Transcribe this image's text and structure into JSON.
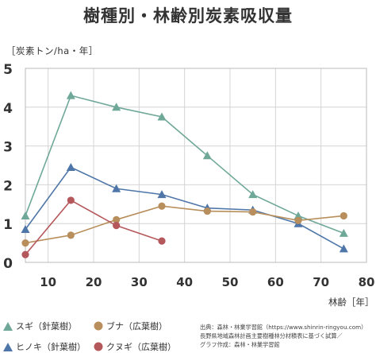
{
  "title": "樹種別・林齢別炭素吸収量",
  "y_unit": "［炭素トン/ha・年］",
  "x_unit": "林齢［年］",
  "legend": [
    {
      "label": "スギ（針葉樹）",
      "marker": "triangle",
      "color": "#6fa898"
    },
    {
      "label": "ブナ（広葉樹）",
      "marker": "circle",
      "color": "#b88f5c"
    },
    {
      "label": "ヒノキ（針葉樹）",
      "marker": "triangle",
      "color": "#4f76a8"
    },
    {
      "label": "クヌギ（広葉樹）",
      "marker": "circle",
      "color": "#b5585c"
    }
  ],
  "source_lines": [
    "出典：森林・林業学習館（https://www.shinrin-ringyou.com）",
    "長野県地域森林計画主要樹種林分材積表に基づく試算／",
    "グラフ作成：森林・林業学習館"
  ],
  "chart_data": {
    "type": "line",
    "title": "樹種別・林齢別炭素吸収量",
    "xlabel": "林齢［年］",
    "ylabel": "［炭素トン/ha・年］",
    "xlim": [
      5,
      80
    ],
    "ylim": [
      0,
      5
    ],
    "x_ticks": [
      10,
      20,
      30,
      40,
      50,
      60,
      70,
      80
    ],
    "y_ticks": [
      0,
      1,
      2,
      3,
      4,
      5
    ],
    "grid": true,
    "legend_position": "bottom-left",
    "series": [
      {
        "name": "スギ（針葉樹）",
        "color": "#6fa898",
        "marker": "triangle",
        "x": [
          5,
          15,
          25,
          35,
          45,
          55,
          65,
          75
        ],
        "y": [
          1.2,
          4.3,
          4.0,
          3.75,
          2.75,
          1.75,
          1.2,
          0.75
        ]
      },
      {
        "name": "ヒノキ（針葉樹）",
        "color": "#4f76a8",
        "marker": "triangle",
        "x": [
          5,
          15,
          25,
          35,
          45,
          55,
          65,
          75
        ],
        "y": [
          0.85,
          2.45,
          1.9,
          1.75,
          1.4,
          1.35,
          1.0,
          0.35
        ]
      },
      {
        "name": "ブナ（広葉樹）",
        "color": "#b88f5c",
        "marker": "circle",
        "x": [
          5,
          15,
          25,
          35,
          45,
          55,
          65,
          75
        ],
        "y": [
          0.5,
          0.7,
          1.1,
          1.45,
          1.32,
          1.3,
          1.08,
          1.2
        ]
      },
      {
        "name": "クヌギ（広葉樹）",
        "color": "#b5585c",
        "marker": "circle",
        "x": [
          5,
          15,
          25,
          35
        ],
        "y": [
          0.2,
          1.6,
          0.95,
          0.55
        ]
      }
    ]
  }
}
